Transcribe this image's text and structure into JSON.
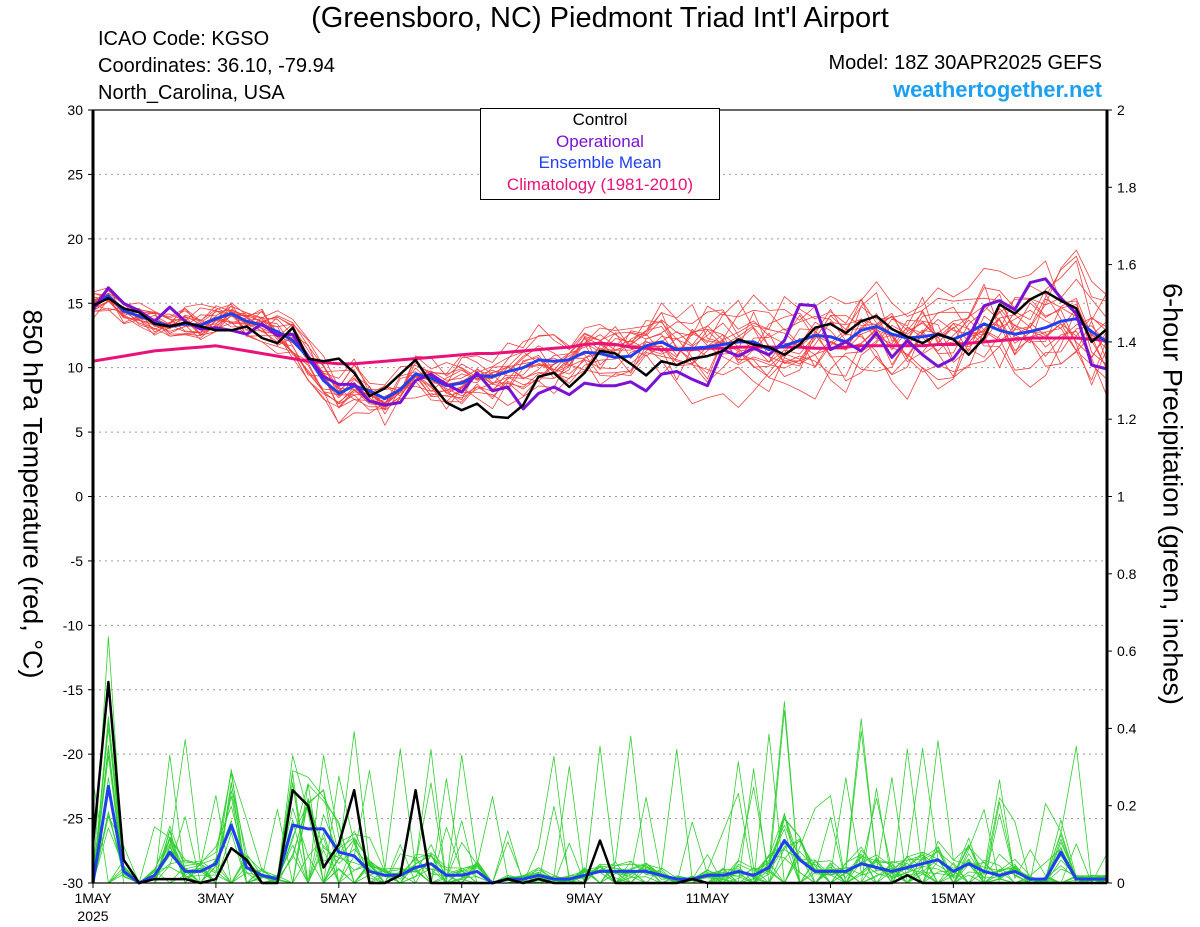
{
  "header": {
    "title": "(Greensboro, NC) Piedmont Triad Int'l Airport",
    "icao": "ICAO Code: KGSO",
    "coords": "Coordinates: 36.10, -79.94",
    "region": "North_Carolina, USA",
    "model": "Model: 18Z 30APR2025 GEFS",
    "brand": "weathertogether.net"
  },
  "legend": {
    "control": "Control",
    "operational": "Operational",
    "mean": "Ensemble Mean",
    "climo": "Climatology (1981-2010)"
  },
  "colors": {
    "control": "#000000",
    "operational": "#7a12d4",
    "mean": "#2040f0",
    "climo": "#e8127a",
    "members_temp": "#f04040",
    "members_precip": "#30d030",
    "brand": "#1ea0f0"
  },
  "chart_data": {
    "type": "line",
    "time_axis": {
      "start": "2025-05-01 00Z",
      "end": "2025-05-17 00Z",
      "step_hours": 6
    },
    "x_ticks": [
      "1MAY",
      "3MAY",
      "5MAY",
      "7MAY",
      "9MAY",
      "11MAY",
      "13MAY",
      "15MAY"
    ],
    "x_year_label": "2025",
    "left_axis": {
      "label": "850 hPa Temperature (red, °C)",
      "range": [
        -30,
        30
      ],
      "ticks": [
        -30,
        -25,
        -20,
        -15,
        -10,
        -5,
        0,
        5,
        10,
        15,
        20,
        25,
        30
      ]
    },
    "right_axis": {
      "label": "6-hour Precipitation (green, inches)",
      "range": [
        0,
        2
      ],
      "ticks": [
        0,
        0.2,
        0.4,
        0.6,
        0.8,
        1,
        1.2,
        1.4,
        1.6,
        1.8,
        2
      ]
    },
    "grid": "dotted horizontal",
    "legend_position": "top-center",
    "temperature": {
      "control": [
        14.8,
        15.4,
        14.6,
        14.3,
        13.4,
        13.2,
        13.5,
        13.2,
        12.9,
        12.9,
        13.2,
        12.3,
        11.9,
        13.1,
        10.7,
        10.5,
        10.7,
        9.6,
        7.8,
        8.4,
        9.5,
        10.6,
        8.8,
        7.3,
        6.7,
        7.2,
        6.2,
        6.1,
        7.1,
        9.3,
        9.6,
        8.5,
        9.6,
        11.3,
        11.1,
        10.3,
        9.4,
        10.5,
        10.2,
        10.7,
        10.9,
        11.3,
        12.2,
        11.8,
        11.6,
        11.0,
        11.8,
        13.1,
        13.4,
        12.7,
        13.6,
        14.0,
        13.0,
        12.4,
        11.9,
        12.6,
        12.2,
        11.0,
        12.3,
        14.9,
        14.2,
        15.3,
        15.9,
        15.2,
        14.6,
        12.0,
        13.0
      ],
      "operational": [
        14.5,
        16.2,
        15.0,
        14.4,
        13.6,
        14.7,
        13.6,
        13.0,
        13.1,
        12.9,
        12.6,
        13.4,
        12.5,
        12.6,
        10.9,
        9.3,
        8.7,
        8.7,
        7.4,
        7.1,
        7.3,
        9.0,
        9.5,
        8.7,
        8.1,
        9.6,
        8.2,
        8.5,
        6.8,
        8.0,
        8.5,
        7.9,
        8.8,
        8.6,
        8.6,
        8.9,
        8.2,
        9.5,
        9.7,
        9.1,
        8.6,
        11.4,
        10.9,
        11.5,
        11.0,
        12.1,
        14.9,
        14.8,
        11.4,
        12.0,
        11.3,
        12.7,
        10.8,
        12.1,
        11.0,
        10.1,
        10.7,
        12.3,
        14.8,
        15.2,
        14.5,
        16.6,
        16.9,
        15.4,
        14.2,
        10.2,
        9.9
      ],
      "mean": [
        14.8,
        15.6,
        14.4,
        14.0,
        13.6,
        13.2,
        13.4,
        13.3,
        13.8,
        14.2,
        13.6,
        13.3,
        12.8,
        12.1,
        10.8,
        9.0,
        8.0,
        8.6,
        8.2,
        7.6,
        8.3,
        9.5,
        9.2,
        8.6,
        8.8,
        9.4,
        9.3,
        9.7,
        10.0,
        10.6,
        10.5,
        10.6,
        11.2,
        11.1,
        10.8,
        10.9,
        11.7,
        12.0,
        11.4,
        11.5,
        11.6,
        11.8,
        12.0,
        12.0,
        11.4,
        11.7,
        12.1,
        12.5,
        12.4,
        12.0,
        12.9,
        13.2,
        12.6,
        12.3,
        12.4,
        12.6,
        12.2,
        12.7,
        13.4,
        12.9,
        12.6,
        12.8,
        13.1,
        13.6,
        13.8,
        12.8,
        12.0
      ],
      "climatology": [
        10.5,
        10.7,
        10.9,
        11.1,
        11.3,
        11.4,
        11.5,
        11.6,
        11.7,
        11.5,
        11.3,
        11.1,
        10.9,
        10.7,
        10.5,
        10.4,
        10.3,
        10.3,
        10.4,
        10.5,
        10.6,
        10.7,
        10.8,
        10.9,
        11.0,
        11.1,
        11.1,
        11.2,
        11.3,
        11.4,
        11.5,
        11.6,
        11.8,
        11.9,
        11.8,
        11.6,
        11.5,
        11.4,
        11.4,
        11.4,
        11.5,
        11.5,
        11.6,
        11.6,
        11.6,
        11.6,
        11.6,
        11.5,
        11.5,
        11.6,
        11.7,
        11.7,
        11.7,
        11.7,
        11.7,
        11.8,
        11.8,
        11.9,
        12.0,
        12.1,
        12.2,
        12.3,
        12.3,
        12.3,
        12.3,
        12.2,
        12.1
      ]
    },
    "precipitation": {
      "control": [
        0.1,
        0.52,
        0.06,
        0,
        0.01,
        0.01,
        0.01,
        0,
        0.01,
        0.09,
        0.06,
        0,
        0,
        0.24,
        0.2,
        0.04,
        0.1,
        0.24,
        0,
        0,
        0.02,
        0.24,
        0,
        0,
        0,
        0,
        0,
        0.01,
        0,
        0.01,
        0,
        0,
        0,
        0.11,
        0,
        0,
        0,
        0,
        0,
        0.01,
        0,
        0,
        0,
        0,
        0,
        0,
        0,
        0,
        0,
        0,
        0,
        0,
        0,
        0.02,
        0,
        0,
        0,
        0,
        0,
        0,
        0,
        0,
        0,
        0,
        0,
        0,
        0
      ],
      "mean": [
        0,
        0.25,
        0.03,
        0,
        0.02,
        0.08,
        0.03,
        0.03,
        0.05,
        0.15,
        0.04,
        0.02,
        0.01,
        0.15,
        0.14,
        0.14,
        0.08,
        0.07,
        0.03,
        0.02,
        0.02,
        0.04,
        0.05,
        0.02,
        0.02,
        0.03,
        0,
        0.01,
        0.01,
        0.02,
        0.01,
        0.01,
        0.02,
        0.03,
        0.03,
        0.03,
        0.03,
        0.02,
        0.01,
        0.01,
        0.02,
        0.02,
        0.03,
        0.02,
        0.04,
        0.11,
        0.06,
        0.03,
        0.03,
        0.03,
        0.05,
        0.04,
        0.03,
        0.04,
        0.05,
        0.06,
        0.03,
        0.05,
        0.03,
        0.02,
        0.03,
        0.01,
        0.01,
        0.08,
        0.01,
        0.01,
        0.01
      ]
    }
  }
}
